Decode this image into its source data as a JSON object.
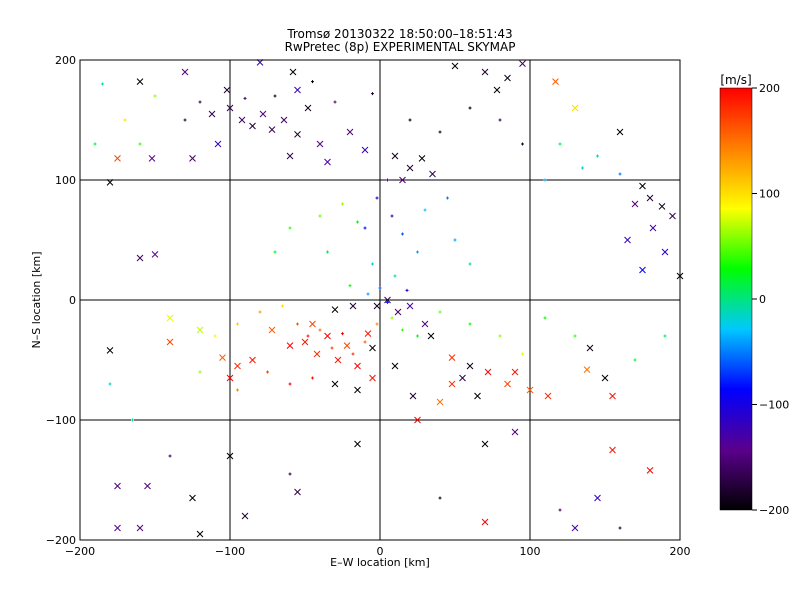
{
  "chart_data": {
    "type": "scatter",
    "title": "Tromsø 20130322 18:50:00–18:51:43",
    "subtitle": "RwPretec (8p) EXPERIMENTAL SKYMAP",
    "xlabel": "E–W location [km]",
    "ylabel": "N–S location [km]",
    "xlim": [
      -200,
      200
    ],
    "ylim": [
      -200,
      200
    ],
    "xticks": [
      -200,
      -100,
      0,
      100,
      200
    ],
    "yticks": [
      -200,
      -100,
      0,
      100,
      200
    ],
    "xtick_labels": [
      "−200",
      "−100",
      "0",
      "100",
      "200"
    ],
    "ytick_labels": [
      "−200",
      "−100",
      "0",
      "100",
      "200"
    ],
    "grid": true,
    "color_variable": "line-of-sight velocity",
    "colorbar": {
      "label": "[m/s]",
      "range": [
        -200,
        200
      ],
      "ticks": [
        -200,
        -100,
        0,
        100,
        200
      ],
      "tick_labels": [
        "−200",
        "−100",
        "0",
        "100",
        "200"
      ],
      "colormap": [
        "#000000",
        "#5a008c",
        "#0000ff",
        "#00c8ff",
        "#00ff00",
        "#ffff00",
        "#ff8000",
        "#ff0000"
      ]
    },
    "marker_types": [
      "x (cross)",
      "+ (dot/plus)"
    ],
    "series": [
      {
        "name": "crosses",
        "marker": "x",
        "points": [
          [
            -160,
            182,
            -200
          ],
          [
            -130,
            190,
            -150
          ],
          [
            -102,
            175,
            -180
          ],
          [
            -80,
            198,
            -120
          ],
          [
            -58,
            190,
            -200
          ],
          [
            -100,
            160,
            -170
          ],
          [
            -92,
            150,
            -160
          ],
          [
            -85,
            145,
            -180
          ],
          [
            -78,
            155,
            -150
          ],
          [
            -72,
            142,
            -170
          ],
          [
            -64,
            150,
            -160
          ],
          [
            -55,
            138,
            -180
          ],
          [
            -48,
            160,
            -190
          ],
          [
            -40,
            130,
            -150
          ],
          [
            -108,
            130,
            -120
          ],
          [
            -112,
            155,
            -170
          ],
          [
            -60,
            120,
            -170
          ],
          [
            -35,
            115,
            -130
          ],
          [
            -20,
            140,
            -150
          ],
          [
            -10,
            125,
            -120
          ],
          [
            10,
            120,
            -190
          ],
          [
            20,
            110,
            -180
          ],
          [
            28,
            118,
            -200
          ],
          [
            35,
            105,
            -170
          ],
          [
            15,
            100,
            -150
          ],
          [
            50,
            195,
            -200
          ],
          [
            70,
            190,
            -180
          ],
          [
            85,
            185,
            -190
          ],
          [
            95,
            197,
            -160
          ],
          [
            78,
            175,
            -200
          ],
          [
            175,
            95,
            -200
          ],
          [
            180,
            85,
            -180
          ],
          [
            188,
            78,
            -190
          ],
          [
            195,
            70,
            -170
          ],
          [
            170,
            80,
            -150
          ],
          [
            182,
            60,
            -130
          ],
          [
            190,
            40,
            -110
          ],
          [
            200,
            20,
            -200
          ],
          [
            165,
            50,
            -120
          ],
          [
            175,
            25,
            -90
          ],
          [
            -175,
            118,
            170
          ],
          [
            -152,
            118,
            -140
          ],
          [
            -180,
            98,
            -200
          ],
          [
            -125,
            118,
            -160
          ],
          [
            -55,
            175,
            -120
          ],
          [
            -140,
            -15,
            80
          ],
          [
            -120,
            -25,
            70
          ],
          [
            -105,
            -48,
            160
          ],
          [
            -95,
            -55,
            180
          ],
          [
            -60,
            -38,
            200
          ],
          [
            -50,
            -35,
            190
          ],
          [
            -42,
            -45,
            180
          ],
          [
            -35,
            -30,
            200
          ],
          [
            -28,
            -50,
            190
          ],
          [
            -22,
            -38,
            170
          ],
          [
            -15,
            -55,
            200
          ],
          [
            -8,
            -28,
            190
          ],
          [
            -2,
            -5,
            -190
          ],
          [
            5,
            0,
            -170
          ],
          [
            12,
            -10,
            -160
          ],
          [
            -18,
            -5,
            -180
          ],
          [
            -30,
            -8,
            -200
          ],
          [
            20,
            -5,
            -130
          ],
          [
            30,
            -20,
            -150
          ],
          [
            -45,
            -20,
            170
          ],
          [
            -72,
            -25,
            160
          ],
          [
            -85,
            -50,
            190
          ],
          [
            -100,
            -65,
            200
          ],
          [
            -15,
            -75,
            -200
          ],
          [
            -5,
            -65,
            190
          ],
          [
            22,
            -80,
            -180
          ],
          [
            25,
            -100,
            200
          ],
          [
            40,
            -85,
            150
          ],
          [
            48,
            -70,
            180
          ],
          [
            55,
            -65,
            -170
          ],
          [
            60,
            -55,
            -190
          ],
          [
            65,
            -80,
            -200
          ],
          [
            72,
            -60,
            200
          ],
          [
            85,
            -70,
            170
          ],
          [
            90,
            -60,
            190
          ],
          [
            100,
            -75,
            160
          ],
          [
            112,
            -80,
            180
          ],
          [
            138,
            -58,
            150
          ],
          [
            150,
            -65,
            -200
          ],
          [
            155,
            -80,
            190
          ],
          [
            -175,
            -155,
            -150
          ],
          [
            -155,
            -155,
            -150
          ],
          [
            -175,
            -190,
            -140
          ],
          [
            -160,
            -190,
            -150
          ],
          [
            -125,
            -165,
            -200
          ],
          [
            -120,
            -195,
            -200
          ],
          [
            -90,
            -180,
            -180
          ],
          [
            -55,
            -160,
            -170
          ],
          [
            70,
            -120,
            -200
          ],
          [
            90,
            -110,
            -150
          ],
          [
            70,
            -185,
            200
          ],
          [
            155,
            -125,
            190
          ],
          [
            180,
            -142,
            200
          ],
          [
            145,
            -165,
            -120
          ],
          [
            130,
            -190,
            -130
          ],
          [
            160,
            140,
            -200
          ],
          [
            130,
            160,
            100
          ],
          [
            117,
            182,
            160
          ],
          [
            140,
            -40,
            -190
          ],
          [
            -180,
            -42,
            -200
          ],
          [
            -140,
            -35,
            170
          ],
          [
            -160,
            35,
            -160
          ],
          [
            -150,
            38,
            -140
          ],
          [
            -100,
            -130,
            -200
          ],
          [
            -15,
            -120,
            -200
          ],
          [
            -5,
            -40,
            -200
          ],
          [
            -30,
            -70,
            -200
          ],
          [
            10,
            -55,
            -200
          ],
          [
            34,
            -30,
            -200
          ],
          [
            48,
            -48,
            180
          ]
        ]
      },
      {
        "name": "dots",
        "marker": "+",
        "points": [
          [
            -130,
            150,
            -180
          ],
          [
            -120,
            165,
            -170
          ],
          [
            -90,
            168,
            -160
          ],
          [
            -70,
            170,
            -190
          ],
          [
            -45,
            182,
            -200
          ],
          [
            -30,
            165,
            -150
          ],
          [
            -5,
            172,
            -180
          ],
          [
            20,
            150,
            -200
          ],
          [
            40,
            140,
            -190
          ],
          [
            60,
            160,
            -200
          ],
          [
            80,
            150,
            -170
          ],
          [
            95,
            130,
            -180
          ],
          [
            5,
            100,
            -140
          ],
          [
            -2,
            85,
            -100
          ],
          [
            8,
            70,
            -120
          ],
          [
            -10,
            60,
            -80
          ],
          [
            15,
            55,
            -60
          ],
          [
            25,
            40,
            -40
          ],
          [
            -5,
            30,
            -20
          ],
          [
            10,
            20,
            0
          ],
          [
            -25,
            80,
            60
          ],
          [
            -40,
            70,
            50
          ],
          [
            -15,
            65,
            20
          ],
          [
            30,
            75,
            -30
          ],
          [
            45,
            85,
            -50
          ],
          [
            -60,
            60,
            40
          ],
          [
            -70,
            40,
            30
          ],
          [
            50,
            50,
            -40
          ],
          [
            60,
            30,
            -10
          ],
          [
            -35,
            40,
            10
          ],
          [
            0,
            10,
            -60
          ],
          [
            5,
            -2,
            -80
          ],
          [
            -8,
            5,
            -40
          ],
          [
            18,
            8,
            -100
          ],
          [
            -20,
            12,
            30
          ],
          [
            -55,
            -20,
            160
          ],
          [
            -48,
            -30,
            190
          ],
          [
            -40,
            -25,
            150
          ],
          [
            -32,
            -40,
            170
          ],
          [
            -25,
            -28,
            200
          ],
          [
            -18,
            -45,
            180
          ],
          [
            -10,
            -35,
            160
          ],
          [
            -2,
            -20,
            140
          ],
          [
            8,
            -15,
            60
          ],
          [
            15,
            -25,
            40
          ],
          [
            25,
            -30,
            20
          ],
          [
            -65,
            -5,
            100
          ],
          [
            -80,
            -10,
            130
          ],
          [
            -95,
            -20,
            110
          ],
          [
            -110,
            -30,
            90
          ],
          [
            120,
            130,
            10
          ],
          [
            135,
            110,
            -20
          ],
          [
            110,
            100,
            -40
          ],
          [
            145,
            120,
            -10
          ],
          [
            160,
            105,
            -50
          ],
          [
            -150,
            170,
            60
          ],
          [
            -170,
            150,
            100
          ],
          [
            -185,
            180,
            -10
          ],
          [
            -190,
            130,
            20
          ],
          [
            -160,
            130,
            40
          ],
          [
            40,
            -10,
            50
          ],
          [
            60,
            -20,
            30
          ],
          [
            80,
            -30,
            60
          ],
          [
            95,
            -45,
            80
          ],
          [
            110,
            -15,
            30
          ],
          [
            -95,
            -75,
            140
          ],
          [
            -75,
            -60,
            170
          ],
          [
            -60,
            -70,
            200
          ],
          [
            -45,
            -65,
            190
          ],
          [
            -120,
            -60,
            60
          ],
          [
            130,
            -30,
            40
          ],
          [
            170,
            -50,
            20
          ],
          [
            190,
            -30,
            10
          ],
          [
            -180,
            -70,
            -20
          ],
          [
            -165,
            -100,
            0
          ],
          [
            160,
            -190,
            -180
          ],
          [
            120,
            -175,
            -150
          ],
          [
            40,
            -165,
            -190
          ],
          [
            -60,
            -145,
            -170
          ],
          [
            -140,
            -130,
            -160
          ]
        ]
      }
    ]
  }
}
